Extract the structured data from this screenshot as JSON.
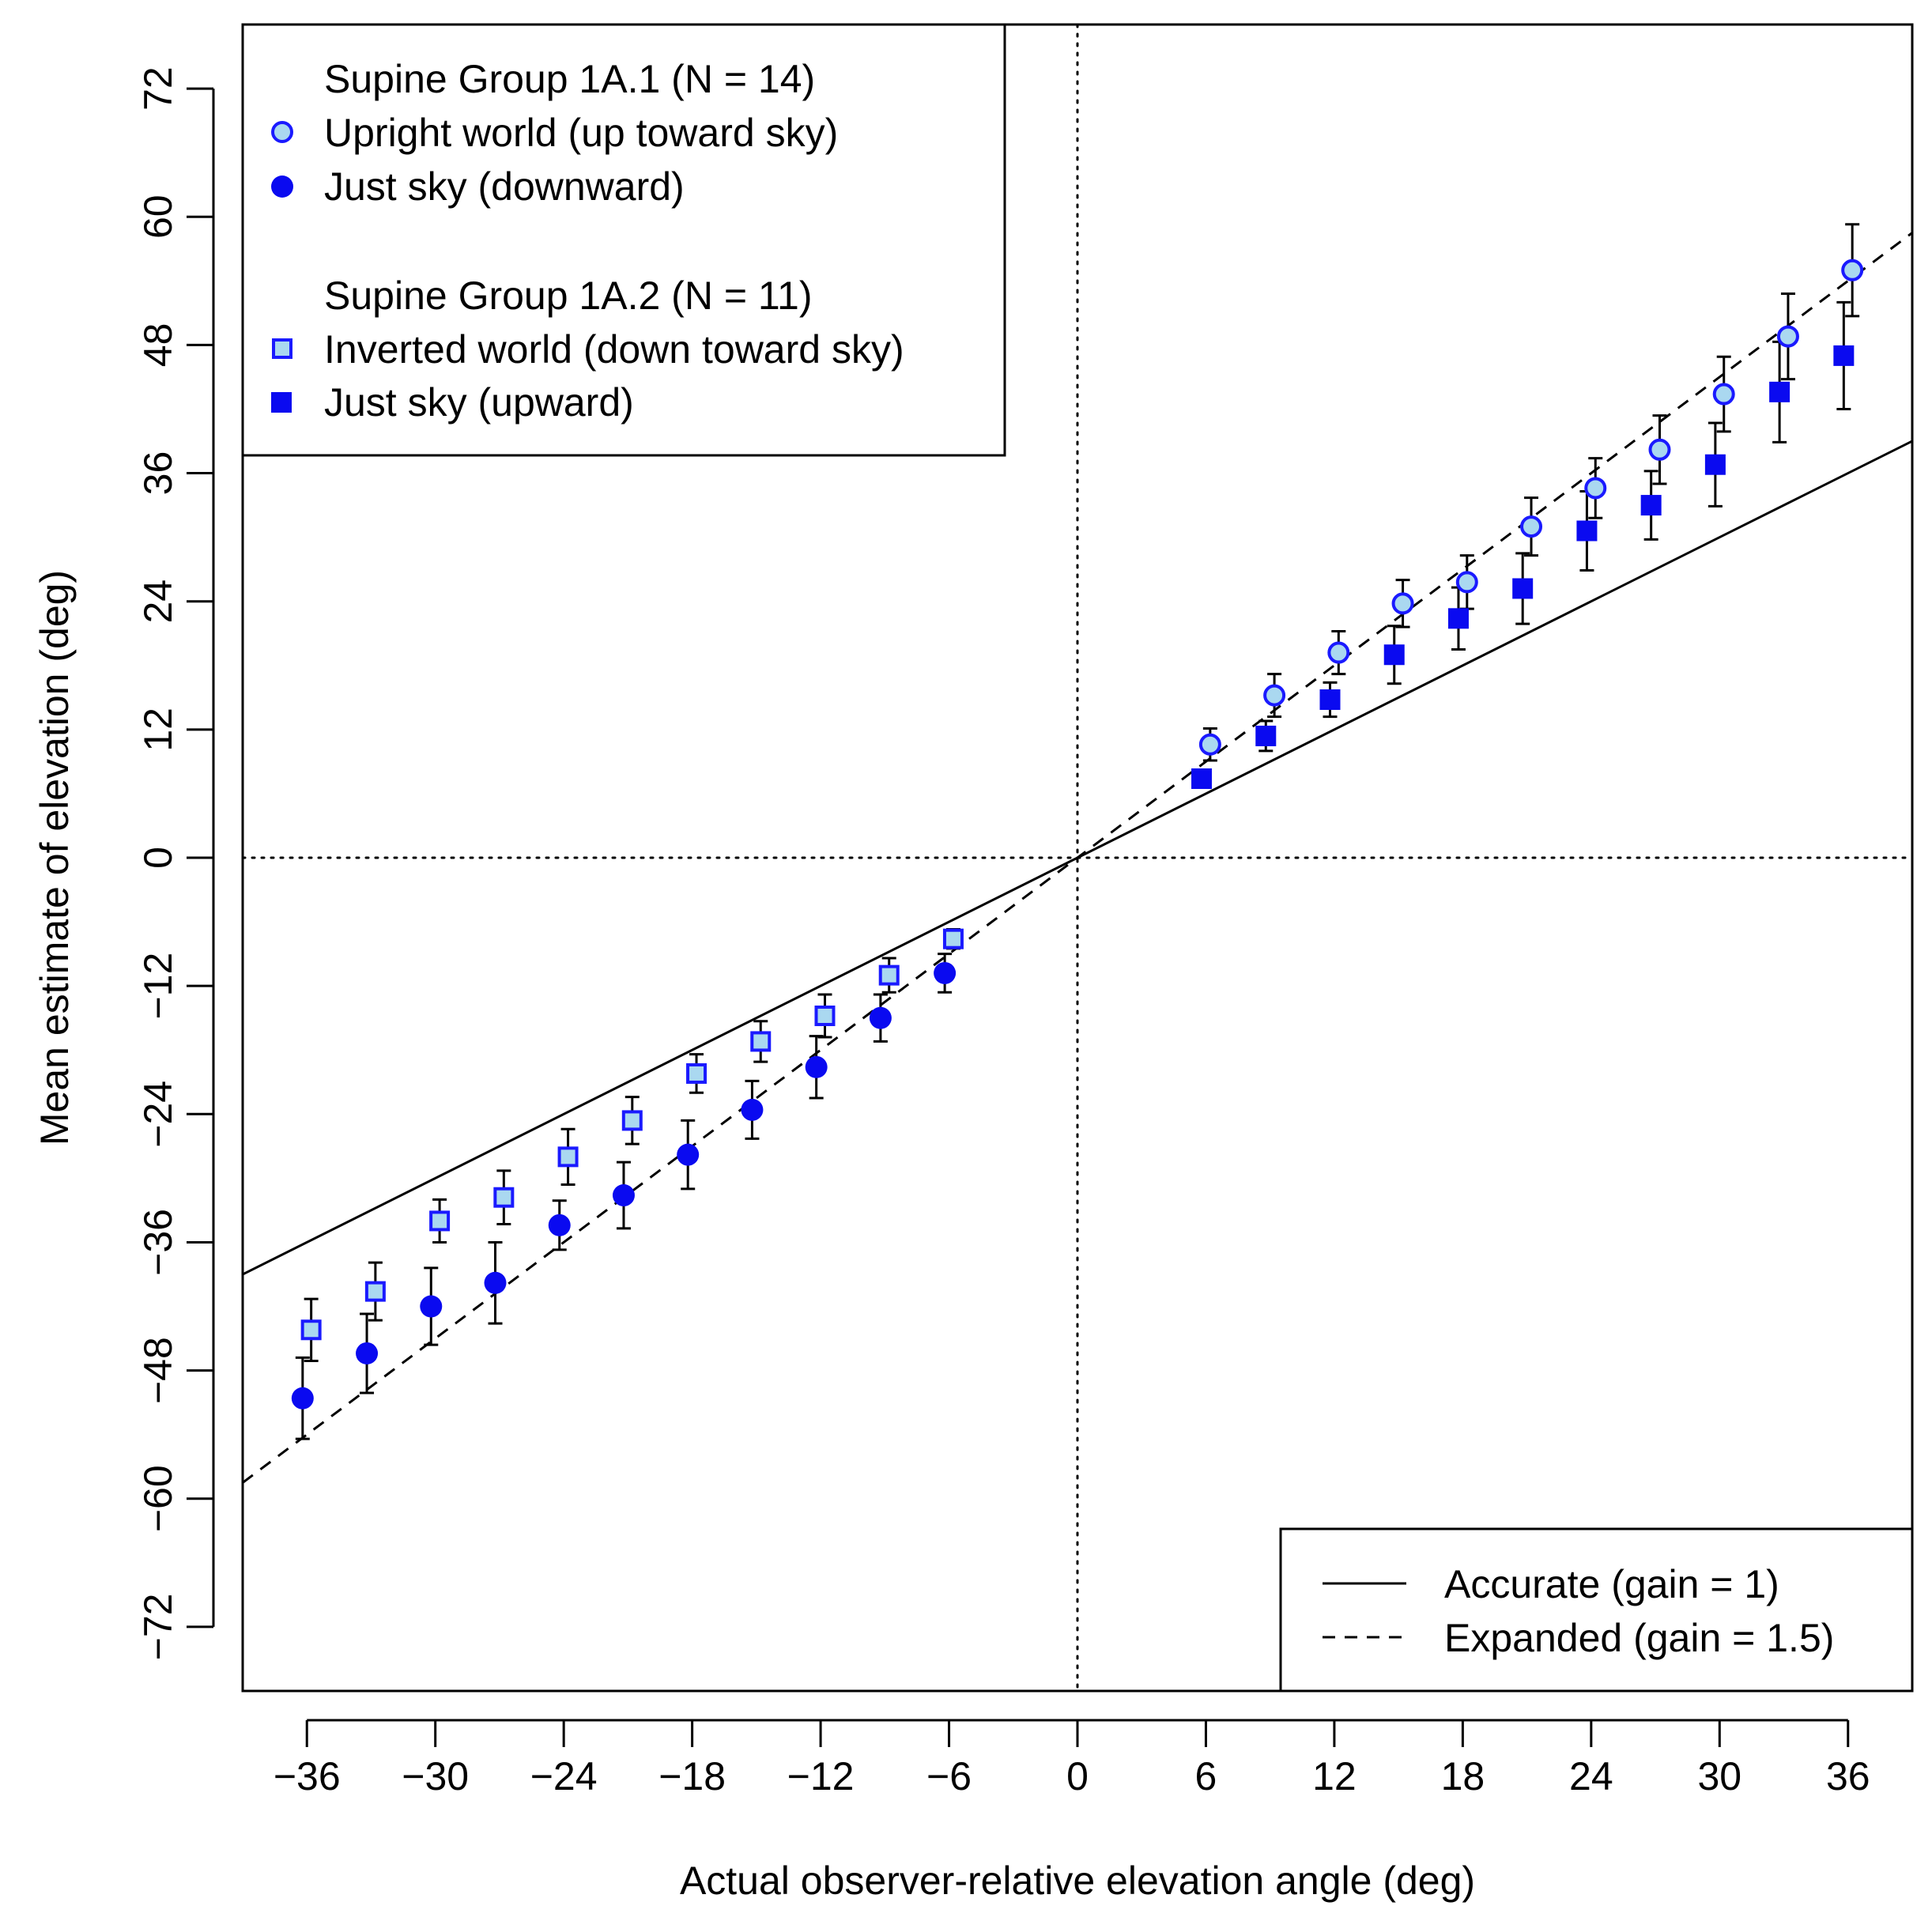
{
  "chart_data": {
    "type": "scatter",
    "xlabel": "Actual observer-relative elevation angle (deg)",
    "ylabel": "Mean estimate of elevation (deg)",
    "xlim": [
      -39,
      39
    ],
    "ylim": [
      -78,
      78
    ],
    "xticks": [
      -36,
      -30,
      -24,
      -18,
      -12,
      -6,
      0,
      6,
      12,
      18,
      24,
      30,
      36
    ],
    "xtick_labels": [
      "−36",
      "−30",
      "−24",
      "−18",
      "−12",
      "−6",
      "0",
      "6",
      "12",
      "18",
      "24",
      "30",
      "36"
    ],
    "yticks": [
      -72,
      -60,
      -48,
      -36,
      -24,
      -12,
      0,
      12,
      24,
      36,
      48,
      60,
      72
    ],
    "ytick_labels": [
      "−72",
      "−60",
      "−48",
      "−36",
      "−24",
      "−12",
      "0",
      "12",
      "24",
      "36",
      "48",
      "60",
      "72"
    ],
    "colors": {
      "dark_blue": "#0a0af0",
      "light_blue": "#aad8f0",
      "edge_blue": "#1a1aff",
      "axis": "#000000"
    },
    "reference_lines": [
      {
        "name": "Accurate (gain = 1)",
        "slope": 1,
        "style": "solid"
      },
      {
        "name": "Expanded (gain = 1.5)",
        "slope": 1.5,
        "style": "dashed"
      }
    ],
    "zero_lines": {
      "x": 0,
      "y": 0,
      "style": "dotted"
    },
    "series": [
      {
        "name": "Upright world (up toward sky)",
        "group": "Supine Group 1A.1 (N = 14)",
        "marker": "circle",
        "fill": "light",
        "x": [
          6.2,
          9.2,
          12.2,
          15.2,
          18.2,
          21.2,
          24.2,
          27.2,
          30.2,
          33.2,
          36.2
        ],
        "y": [
          10.6,
          15.2,
          19.2,
          23.8,
          25.8,
          31.0,
          34.6,
          38.2,
          43.4,
          48.8,
          55.0
        ],
        "err": [
          1.5,
          2.0,
          2.0,
          2.2,
          2.5,
          2.7,
          2.8,
          3.2,
          3.5,
          4.0,
          4.3
        ]
      },
      {
        "name": "Just sky (downward)",
        "group": "Supine Group 1A.1 (N = 14)",
        "marker": "circle",
        "fill": "dark",
        "x": [
          -36.2,
          -33.2,
          -30.2,
          -27.2,
          -24.2,
          -21.2,
          -18.2,
          -15.2,
          -12.2,
          -9.2,
          -6.2
        ],
        "y": [
          -50.6,
          -46.4,
          -42.0,
          -39.8,
          -34.4,
          -31.6,
          -27.8,
          -23.6,
          -19.6,
          -15.0,
          -10.8
        ],
        "err": [
          3.8,
          3.7,
          3.6,
          3.8,
          2.3,
          3.1,
          3.2,
          2.7,
          2.9,
          2.2,
          1.8
        ]
      },
      {
        "name": "Inverted world (down toward sky)",
        "group": "Supine Group 1A.2 (N = 11)",
        "marker": "square",
        "fill": "light",
        "x": [
          -35.8,
          -32.8,
          -29.8,
          -26.8,
          -23.8,
          -20.8,
          -17.8,
          -14.8,
          -11.8,
          -8.8,
          -5.8
        ],
        "y": [
          -44.2,
          -40.6,
          -34.0,
          -31.8,
          -28.0,
          -24.6,
          -20.2,
          -17.2,
          -14.8,
          -11.0,
          -7.6
        ],
        "err": [
          2.9,
          2.7,
          2.0,
          2.5,
          2.6,
          2.2,
          1.8,
          1.9,
          2.0,
          1.6,
          0.9
        ]
      },
      {
        "name": "Just sky (upward)",
        "group": "Supine Group 1A.2 (N = 11)",
        "marker": "square",
        "fill": "dark",
        "x": [
          5.8,
          8.8,
          11.8,
          14.8,
          17.8,
          20.8,
          23.8,
          26.8,
          29.8,
          32.8,
          35.8
        ],
        "y": [
          7.4,
          11.4,
          14.8,
          19.0,
          22.4,
          25.2,
          30.6,
          33.0,
          36.8,
          43.6,
          47.0
        ],
        "err": [
          0.8,
          1.4,
          1.6,
          2.7,
          2.9,
          3.3,
          3.7,
          3.2,
          3.9,
          4.7,
          5.0
        ]
      }
    ],
    "legend_top": {
      "placement": "top-left",
      "group1_title": "Supine Group 1A.1 (N = 14)",
      "group1_items": [
        "Upright world (up toward sky)",
        "Just sky (downward)"
      ],
      "group2_title": "Supine Group 1A.2 (N = 11)",
      "group2_items": [
        "Inverted world (down toward sky)",
        "Just sky (upward)"
      ]
    },
    "legend_bottom": {
      "placement": "bottom-right",
      "items": [
        "Accurate (gain = 1)",
        "Expanded (gain = 1.5)"
      ]
    }
  }
}
